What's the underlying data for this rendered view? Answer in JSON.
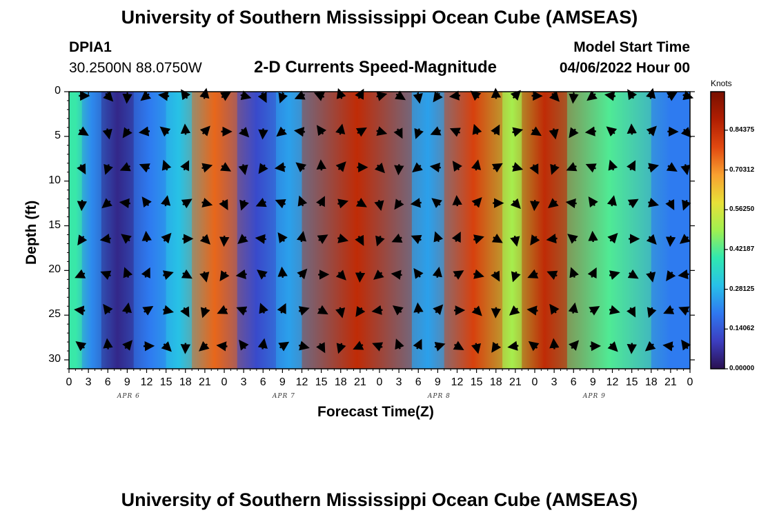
{
  "header": {
    "title": "University of Southern Mississippi Ocean Cube (AMSEAS)",
    "station": "DPIA1",
    "coords": "30.2500N  88.0750W",
    "chart_title": "2-D Currents Speed-Magnitude",
    "model_label": "Model Start Time",
    "model_date": "04/06/2022 Hour 00"
  },
  "footer": {
    "title": "University of Southern Mississippi Ocean Cube (AMSEAS)"
  },
  "colors": {
    "ramp": [
      "#2a1050",
      "#3c3ec0",
      "#2f78f0",
      "#28c0e8",
      "#30e8b0",
      "#a0f050",
      "#e8e038",
      "#f8a030",
      "#e04810",
      "#b01e02",
      "#781000"
    ]
  },
  "chart_data": {
    "type": "heatmap",
    "title": "2-D Currents Speed-Magnitude",
    "xlabel": "Forecast Time(Z)",
    "ylabel": "Depth (ft)",
    "x_tick_labels": [
      "0",
      "3",
      "6",
      "9",
      "12",
      "15",
      "18",
      "21",
      "0",
      "3",
      "6",
      "9",
      "12",
      "15",
      "18",
      "21",
      "0",
      "3",
      "6",
      "9",
      "12",
      "15",
      "18",
      "21",
      "0",
      "3",
      "6",
      "9",
      "12",
      "15",
      "18",
      "21",
      "0"
    ],
    "date_labels": [
      {
        "label": "APR 6",
        "hour": 9
      },
      {
        "label": "APR 7",
        "hour": 33
      },
      {
        "label": "APR 8",
        "hour": 57
      },
      {
        "label": "APR 9",
        "hour": 81
      }
    ],
    "y_ticks": [
      "0",
      "5",
      "10",
      "15",
      "20",
      "25",
      "30"
    ],
    "xlim": [
      0,
      96
    ],
    "ylim": [
      0,
      31
    ],
    "colorbar": {
      "unit": "Knots",
      "ticks": [
        "0.84375",
        "0.70312",
        "0.56250",
        "0.42187",
        "0.28125",
        "0.14062",
        "0.00000"
      ],
      "tick_values": [
        0.84375,
        0.703125,
        0.5625,
        0.421875,
        0.28125,
        0.140625,
        0.0
      ],
      "range": [
        0,
        0.98
      ]
    },
    "speed_bands": [
      {
        "hours_from": 0,
        "hours_to": 2,
        "knots": 0.4
      },
      {
        "hours_from": 2,
        "hours_to": 5,
        "knots": 0.22
      },
      {
        "hours_from": 5,
        "hours_to": 10,
        "knots": 0.05
      },
      {
        "hours_from": 10,
        "hours_to": 15,
        "knots": 0.2
      },
      {
        "hours_from": 15,
        "hours_to": 19,
        "knots": 0.3
      },
      {
        "hours_from": 19,
        "hours_to": 26,
        "knots": 0.75
      },
      {
        "hours_from": 26,
        "hours_to": 32,
        "knots": 0.12
      },
      {
        "hours_from": 32,
        "hours_to": 36,
        "knots": 0.25
      },
      {
        "hours_from": 36,
        "hours_to": 53,
        "knots": 0.85
      },
      {
        "hours_from": 53,
        "hours_to": 58,
        "knots": 0.25
      },
      {
        "hours_from": 58,
        "hours_to": 67,
        "knots": 0.8
      },
      {
        "hours_from": 67,
        "hours_to": 70,
        "knots": 0.5
      },
      {
        "hours_from": 70,
        "hours_to": 77,
        "knots": 0.85
      },
      {
        "hours_from": 77,
        "hours_to": 90,
        "knots": 0.42
      },
      {
        "hours_from": 90,
        "hours_to": 96,
        "knots": 0.2
      }
    ],
    "vector_depths_ft": [
      0,
      4,
      8,
      12,
      16,
      20,
      24,
      28
    ],
    "vector_hours": [
      2,
      6,
      9,
      12,
      15,
      18,
      21,
      24,
      27,
      30,
      33,
      36,
      39,
      42,
      45,
      48,
      51,
      54,
      57,
      60,
      63,
      66,
      69,
      72,
      75,
      78,
      81,
      84,
      87,
      90,
      93,
      96
    ]
  }
}
